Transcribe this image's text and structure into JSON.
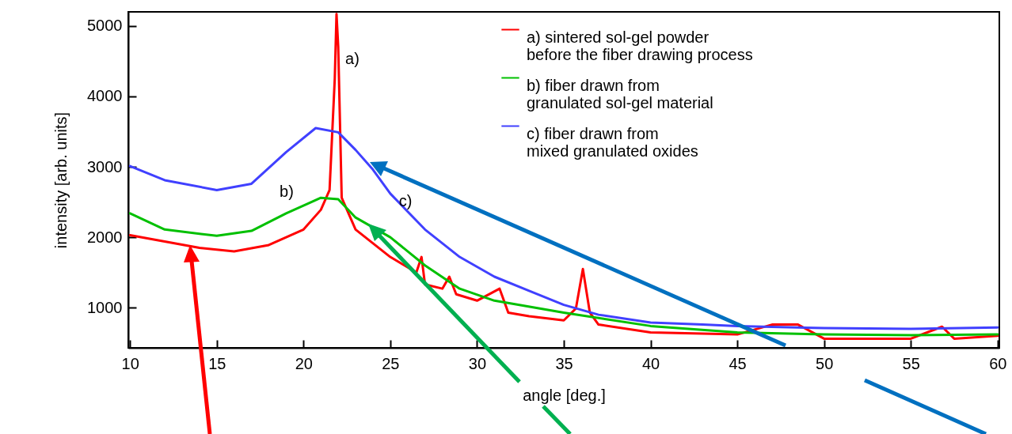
{
  "chart_data": {
    "type": "line",
    "xlabel": "angle [deg.]",
    "ylabel": "intensity [arb. units]",
    "xlim": [
      9.9,
      60.1
    ],
    "xticks": [
      10,
      15,
      20,
      25,
      30,
      35,
      40,
      45,
      50,
      55,
      60
    ],
    "ylim": [
      430,
      5200
    ],
    "yticks": [
      1000,
      2000,
      3000,
      4000,
      5000
    ],
    "grid": false,
    "legend": "top right",
    "line_style": "solid",
    "marker": "none",
    "annotations": [
      "a)",
      "b)",
      "c)"
    ],
    "series": [
      {
        "name": "a) sintered sol-gel powder\n    before the fiber drawing process",
        "color": "#ff0000",
        "x": [
          10,
          12,
          14,
          16,
          18,
          20,
          21,
          21.5,
          21.8,
          21.9,
          22.0,
          22.2,
          23,
          25,
          26.5,
          26.8,
          27,
          28,
          28.4,
          28.8,
          30,
          31.3,
          31.8,
          33,
          35,
          35.7,
          36.1,
          36.5,
          37,
          40,
          45,
          47,
          48.5,
          50,
          55,
          56.8,
          57.5,
          60
        ],
        "values": [
          2030,
          1940,
          1850,
          1800,
          1890,
          2110,
          2390,
          2670,
          4250,
          5170,
          4700,
          2560,
          2110,
          1720,
          1500,
          1720,
          1330,
          1270,
          1440,
          1190,
          1100,
          1270,
          930,
          880,
          820,
          990,
          1550,
          930,
          760,
          650,
          620,
          760,
          760,
          560,
          560,
          730,
          560,
          600
        ]
      },
      {
        "name": "b) fiber drawn from\n    granulated sol-gel material",
        "color": "#00c000",
        "x": [
          10,
          12,
          15,
          17,
          19,
          21,
          22,
          23,
          25,
          27,
          29,
          31,
          35,
          40,
          45,
          50,
          55,
          60
        ],
        "values": [
          2340,
          2110,
          2020,
          2090,
          2340,
          2560,
          2540,
          2280,
          2000,
          1600,
          1270,
          1100,
          930,
          740,
          650,
          620,
          610,
          620
        ]
      },
      {
        "name": "c) fiber drawn from\n    mixed granulated oxides",
        "color": "#4040ff",
        "x": [
          10,
          12,
          15,
          17,
          19,
          20.7,
          22,
          23,
          24,
          25,
          27,
          29,
          31,
          33,
          35,
          37,
          40,
          43,
          45,
          50,
          55,
          60
        ],
        "values": [
          3010,
          2810,
          2670,
          2760,
          3210,
          3550,
          3490,
          3240,
          2960,
          2620,
          2110,
          1720,
          1440,
          1240,
          1040,
          900,
          790,
          760,
          740,
          710,
          700,
          720
        ]
      }
    ]
  }
}
